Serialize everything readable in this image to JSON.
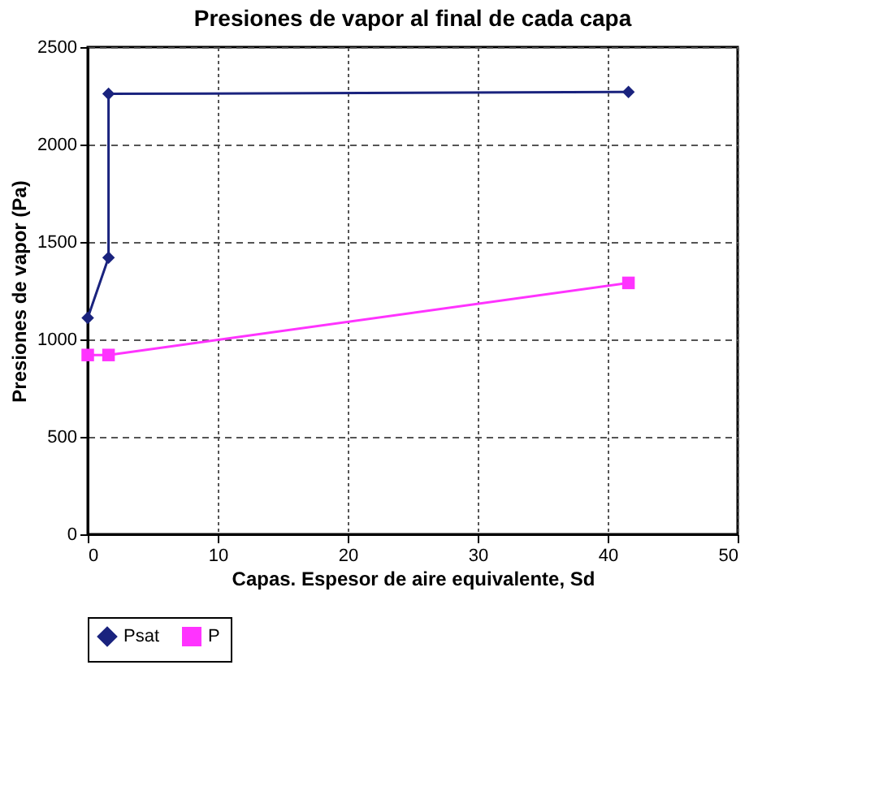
{
  "chart_data": {
    "type": "line",
    "title": "Presiones de vapor al final de cada capa",
    "xlabel": "Capas. Espesor de aire equivalente, Sd",
    "ylabel": "Presiones de vapor (Pa)",
    "series": [
      {
        "name": "Psat",
        "color": "#1a237e",
        "marker": "diamond",
        "x": [
          0,
          1.6,
          1.6,
          41.6
        ],
        "values": [
          1110,
          1420,
          2260,
          2270
        ]
      },
      {
        "name": "P",
        "color": "#ff33ff",
        "marker": "square",
        "x": [
          0,
          1.6,
          41.6
        ],
        "values": [
          920,
          920,
          1290
        ]
      }
    ],
    "xlim": [
      0,
      50
    ],
    "xticks": [
      0,
      10,
      20,
      30,
      40,
      50
    ],
    "ylim": [
      0,
      2500
    ],
    "yticks": [
      0,
      500,
      1000,
      1500,
      2000,
      2500
    ],
    "grid": true,
    "legend": "bottom",
    "line_style": "solid"
  }
}
